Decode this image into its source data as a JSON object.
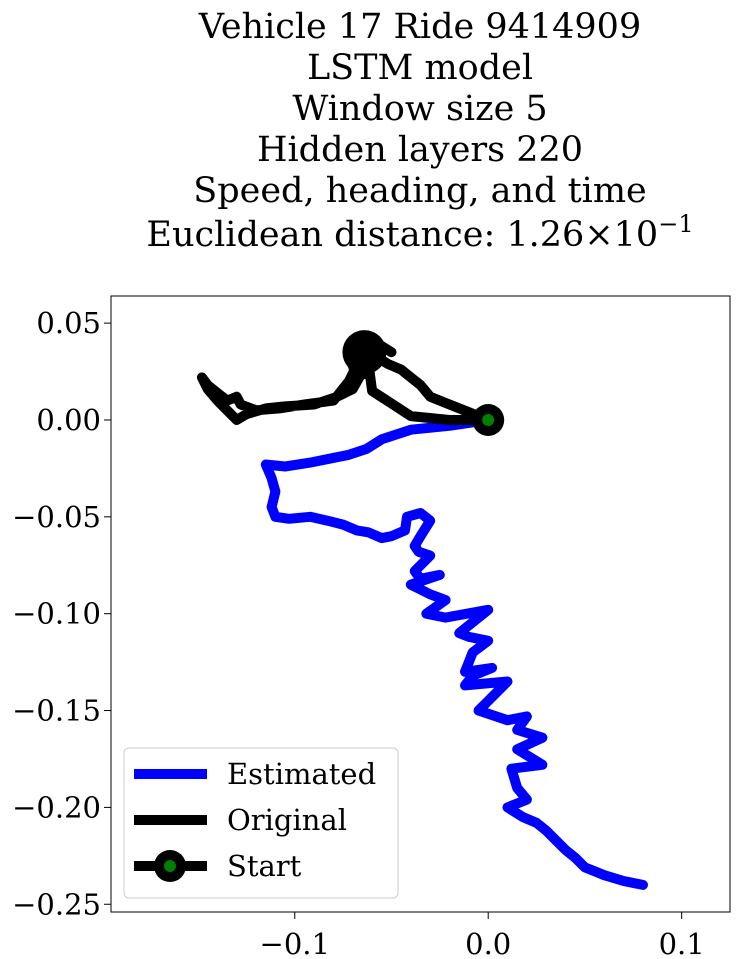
{
  "chart_data": {
    "type": "line",
    "title_lines": [
      "Vehicle 17 Ride 9414909",
      "LSTM model",
      "Window size 5",
      "Hidden layers 220",
      "Speed, heading, and time"
    ],
    "title_metric_prefix": "Euclidean distance: ",
    "title_metric_mantissa": "1.26",
    "title_metric_times": "×",
    "title_metric_base": "10",
    "title_metric_exponent": "−1",
    "xlim": [
      -0.195,
      0.125
    ],
    "ylim": [
      -0.254,
      0.064
    ],
    "xticks": [
      -0.1,
      0.0,
      0.1
    ],
    "xtick_labels": [
      "−0.1",
      "0.0",
      "0.1"
    ],
    "yticks": [
      0.05,
      0.0,
      -0.05,
      -0.1,
      -0.15,
      -0.2,
      -0.25
    ],
    "ytick_labels": [
      "0.05",
      "0.00",
      "−0.05",
      "−0.10",
      "−0.15",
      "−0.20",
      "−0.25"
    ],
    "grid": false,
    "legend_position": "lower-left",
    "series": [
      {
        "name": "Estimated",
        "color": "#0000ff",
        "x": [
          0.0,
          -0.02,
          -0.04,
          -0.055,
          -0.063,
          -0.072,
          -0.082,
          -0.092,
          -0.105,
          -0.115,
          -0.112,
          -0.11,
          -0.112,
          -0.11,
          -0.103,
          -0.092,
          -0.083,
          -0.075,
          -0.068,
          -0.062,
          -0.055,
          -0.05,
          -0.043,
          -0.042,
          -0.035,
          -0.03,
          -0.035,
          -0.038,
          -0.036,
          -0.03,
          -0.038,
          -0.035,
          -0.025,
          -0.04,
          -0.03,
          -0.022,
          -0.032,
          -0.022,
          0.0,
          -0.015,
          -0.01,
          0.0,
          -0.008,
          -0.012,
          0.002,
          -0.008,
          -0.012,
          0.01,
          0.0,
          -0.005,
          0.01,
          0.02,
          0.015,
          0.028,
          0.015,
          0.028,
          0.012,
          0.015,
          0.02,
          0.01,
          0.018,
          0.025,
          0.03,
          0.035,
          0.04,
          0.045,
          0.05,
          0.06,
          0.07,
          0.08
        ],
        "y": [
          0.0,
          -0.003,
          -0.005,
          -0.01,
          -0.015,
          -0.018,
          -0.02,
          -0.022,
          -0.024,
          -0.023,
          -0.03,
          -0.037,
          -0.045,
          -0.05,
          -0.051,
          -0.05,
          -0.052,
          -0.054,
          -0.057,
          -0.058,
          -0.061,
          -0.06,
          -0.057,
          -0.05,
          -0.048,
          -0.052,
          -0.06,
          -0.065,
          -0.068,
          -0.07,
          -0.078,
          -0.082,
          -0.08,
          -0.085,
          -0.09,
          -0.093,
          -0.1,
          -0.102,
          -0.098,
          -0.11,
          -0.112,
          -0.114,
          -0.12,
          -0.13,
          -0.128,
          -0.132,
          -0.137,
          -0.135,
          -0.145,
          -0.15,
          -0.155,
          -0.153,
          -0.16,
          -0.164,
          -0.17,
          -0.178,
          -0.18,
          -0.19,
          -0.196,
          -0.2,
          -0.205,
          -0.208,
          -0.212,
          -0.217,
          -0.222,
          -0.226,
          -0.231,
          -0.235,
          -0.238,
          -0.24
        ]
      },
      {
        "name": "Original",
        "color": "#000000",
        "x": [
          0.0,
          -0.02,
          -0.04,
          -0.06,
          -0.062,
          -0.055,
          -0.05,
          -0.058,
          -0.065,
          -0.07,
          -0.068,
          -0.062,
          -0.058,
          -0.062,
          -0.065,
          -0.072,
          -0.08,
          -0.095,
          -0.108,
          -0.12,
          -0.128,
          -0.13,
          -0.135,
          -0.14,
          -0.145,
          -0.148,
          -0.145,
          -0.14,
          -0.135,
          -0.13,
          -0.125,
          -0.115,
          -0.105,
          -0.09,
          -0.078,
          -0.07,
          -0.065,
          -0.063,
          -0.06,
          -0.052,
          -0.045,
          -0.04,
          -0.035,
          -0.03,
          -0.02,
          -0.01,
          0.0
        ],
        "y": [
          0.0,
          0.0,
          0.002,
          0.015,
          0.03,
          0.038,
          0.035,
          0.04,
          0.036,
          0.028,
          0.022,
          0.025,
          0.032,
          0.038,
          0.034,
          0.02,
          0.01,
          0.008,
          0.006,
          0.005,
          0.008,
          0.012,
          0.01,
          0.014,
          0.018,
          0.022,
          0.016,
          0.01,
          0.005,
          0.0,
          0.003,
          0.006,
          0.007,
          0.008,
          0.012,
          0.016,
          0.025,
          0.03,
          0.034,
          0.029,
          0.026,
          0.022,
          0.018,
          0.012,
          0.008,
          0.004,
          0.0
        ]
      }
    ],
    "cluster_center": [
      -0.064,
      0.035
    ],
    "start_point": {
      "name": "Start",
      "x": 0.0,
      "y": 0.0,
      "edge_color": "#000000",
      "face_color": "#008000"
    }
  }
}
